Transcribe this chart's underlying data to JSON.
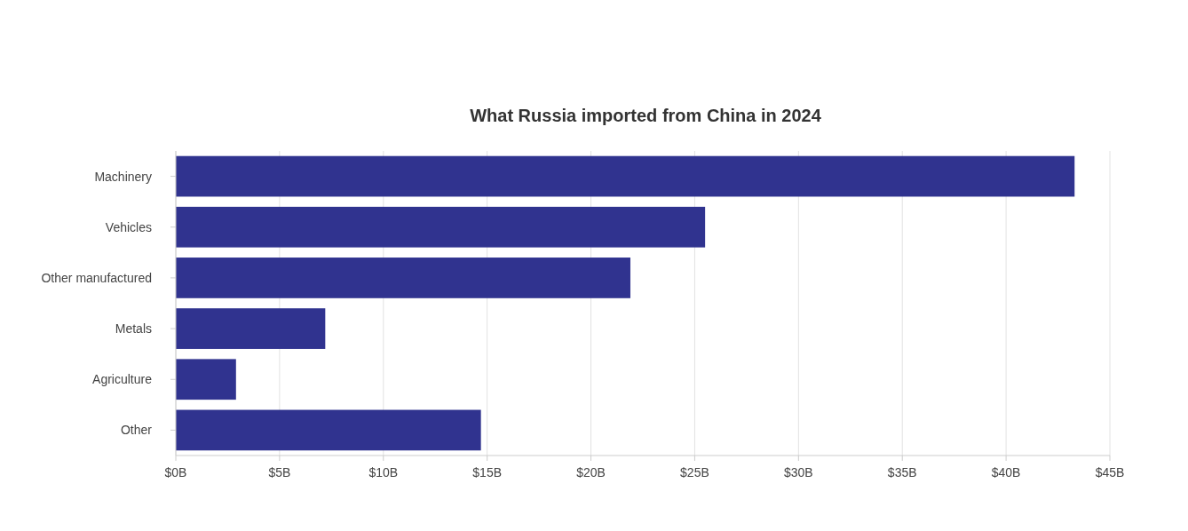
{
  "chart_data": {
    "type": "bar",
    "title": "What Russia imported from China in 2024",
    "orientation": "horizontal",
    "categories": [
      "Machinery",
      "Vehicles",
      "Other manufactured",
      "Metals",
      "Agriculture",
      "Other"
    ],
    "values": [
      43.3,
      25.5,
      21.9,
      7.2,
      2.9,
      14.7
    ],
    "color": "#30338f",
    "xlim": [
      0,
      45
    ],
    "xticks": [
      {
        "value": 0,
        "label": "$0B"
      },
      {
        "value": 5,
        "label": "$5B"
      },
      {
        "value": 10,
        "label": "$10B"
      },
      {
        "value": 15,
        "label": "$15B"
      },
      {
        "value": 20,
        "label": "$20B"
      },
      {
        "value": 25,
        "label": "$25B"
      },
      {
        "value": 30,
        "label": "$30B"
      },
      {
        "value": 35,
        "label": "$35B"
      },
      {
        "value": 40,
        "label": "$40B"
      },
      {
        "value": 45,
        "label": "$45B"
      }
    ],
    "grid": "x"
  }
}
